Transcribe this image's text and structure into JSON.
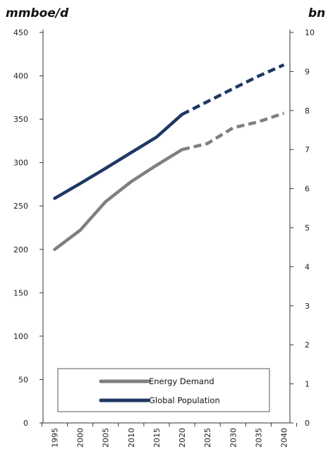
{
  "chart_data": {
    "type": "line",
    "title": "",
    "y_left_label": "mmboe/d",
    "y_right_label": "bn",
    "x": [
      1995,
      2000,
      2005,
      2010,
      2015,
      2020,
      2025,
      2030,
      2035,
      2040
    ],
    "x_tick_labels": [
      "1995",
      "2000",
      "2005",
      "2010",
      "2015",
      "2020",
      "2025",
      "2030",
      "2035",
      "2040"
    ],
    "y_left_ticks": [
      "0",
      "50",
      "100",
      "150",
      "200",
      "250",
      "300",
      "350",
      "400",
      "450"
    ],
    "y_right_ticks": [
      "0",
      "1",
      "2",
      "3",
      "4",
      "5",
      "6",
      "7",
      "8",
      "9",
      "10"
    ],
    "y_left_lim": [
      0,
      450
    ],
    "y_right_lim": [
      0,
      10
    ],
    "grid": false,
    "legend_position": "bottom-center",
    "projection_start": 2020,
    "series": [
      {
        "name": "Energy Demand",
        "axis": "left",
        "color": "#7f7f7f",
        "values": [
          200,
          222,
          255,
          278,
          297,
          315,
          322,
          340,
          347,
          357
        ]
      },
      {
        "name": "Global Population",
        "axis": "right",
        "color": "#1f3864",
        "values": [
          5.75,
          6.13,
          6.52,
          6.92,
          7.32,
          7.9,
          8.23,
          8.56,
          8.88,
          9.17
        ]
      }
    ]
  }
}
